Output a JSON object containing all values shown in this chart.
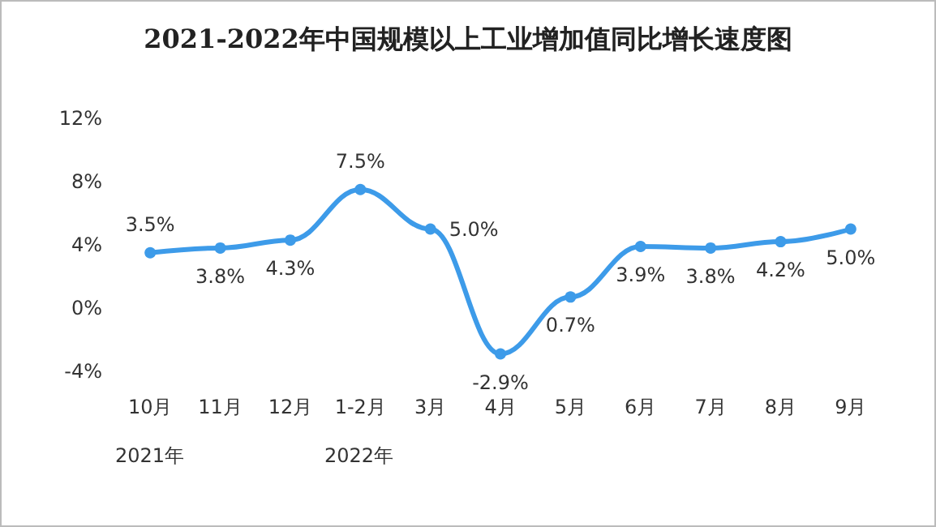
{
  "chart_data": {
    "type": "line",
    "title": "2021-2022年中国规模以上工业增加值同比增长速度图",
    "categories": [
      "10月",
      "11月",
      "12月",
      "1-2月",
      "3月",
      "4月",
      "5月",
      "6月",
      "7月",
      "8月",
      "9月"
    ],
    "series": [
      {
        "color": "#3d9be9",
        "values": [
          3.5,
          3.8,
          4.3,
          7.5,
          5.0,
          -2.9,
          0.7,
          3.9,
          3.8,
          4.2,
          5.0
        ],
        "value_labels": [
          "3.5%",
          "3.8%",
          "4.3%",
          "7.5%",
          "5.0%",
          "-2.9%",
          "0.7%",
          "3.9%",
          "3.8%",
          "4.2%",
          "5.0%"
        ]
      }
    ],
    "ylim": [
      -4,
      12
    ],
    "yticks": [
      {
        "value": -4,
        "label": "-4%"
      },
      {
        "value": 0,
        "label": "0%"
      },
      {
        "value": 4,
        "label": "4%"
      },
      {
        "value": 8,
        "label": "8%"
      },
      {
        "value": 12,
        "label": "12%"
      }
    ],
    "marker": "circle",
    "line_style": "solid",
    "annotations": [
      "2021年",
      "2022年"
    ]
  }
}
